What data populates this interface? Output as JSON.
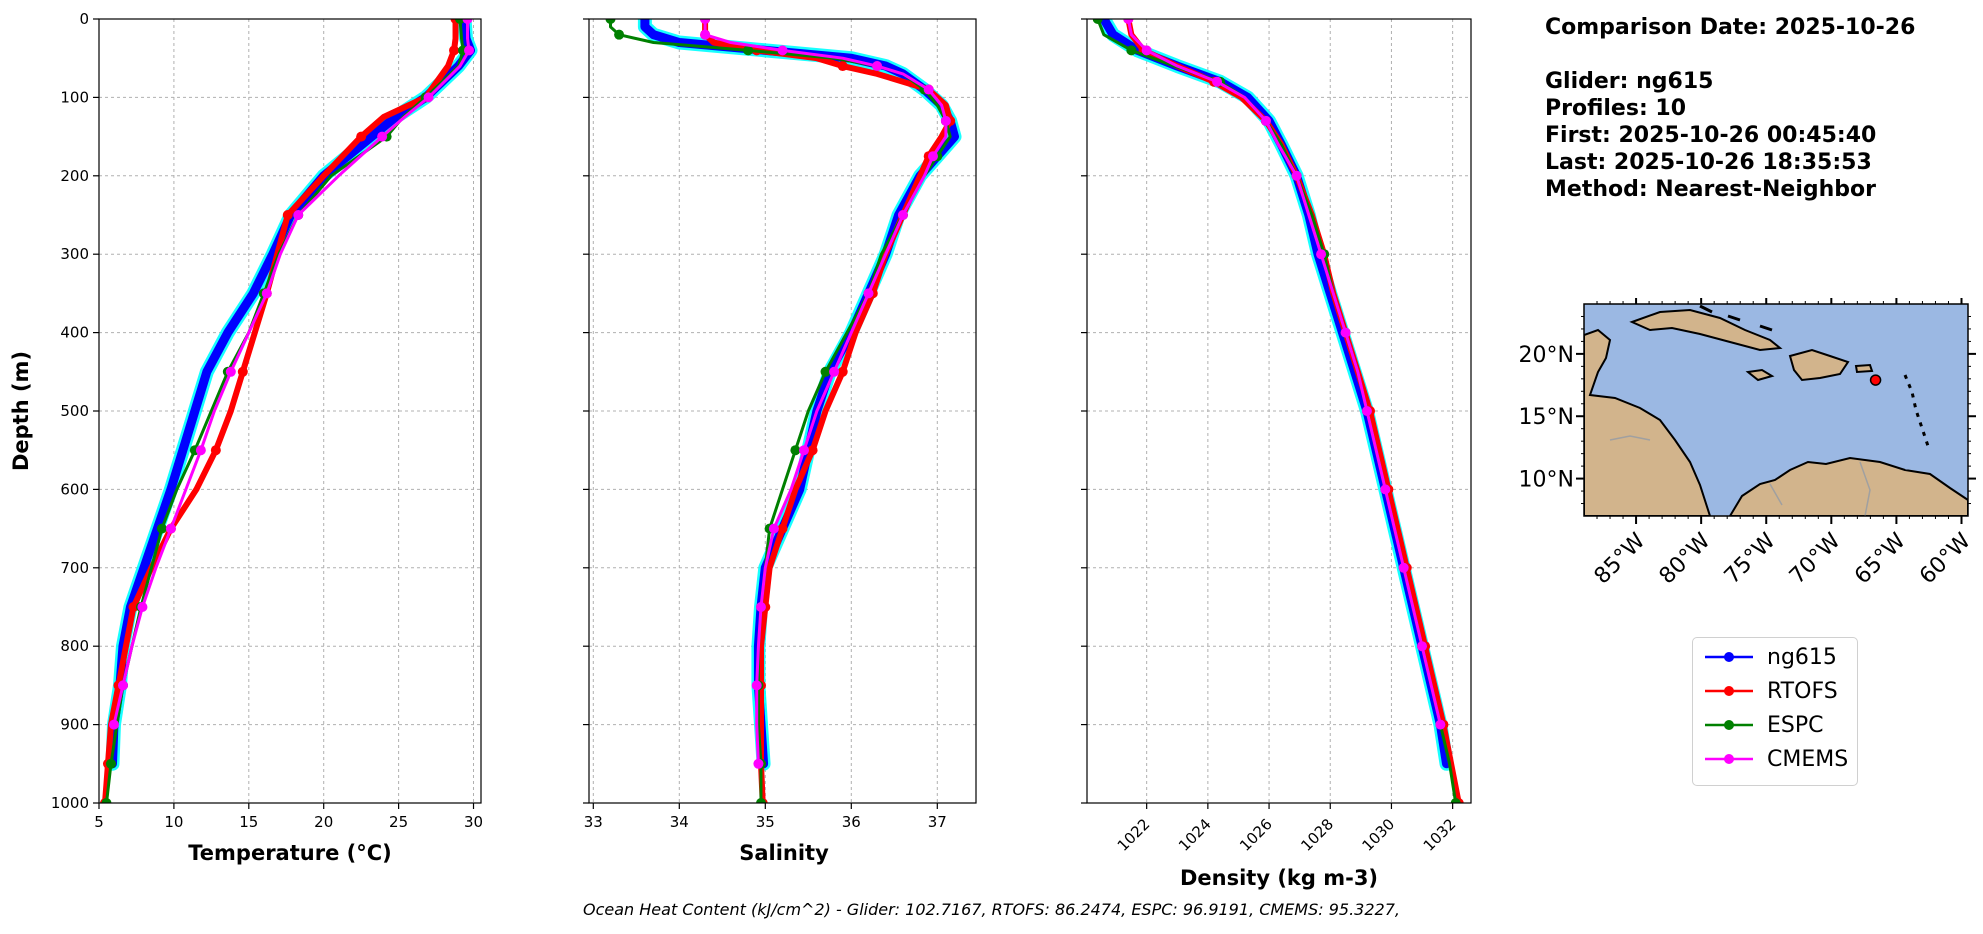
{
  "info": {
    "comparison_date": "Comparison Date: 2025-10-26",
    "glider": "Glider: ng615",
    "profiles": "Profiles: 10",
    "first": "First: 2025-10-26 00:45:40",
    "last": "Last: 2025-10-26 18:35:53",
    "method": "Method: Nearest-Neighbor"
  },
  "footer": "Ocean Heat Content (kJ/cm^2) - Glider: 102.7167,  RTOFS: 86.2474,  ESPC: 96.9191,  CMEMS: 95.3227,",
  "colors": {
    "ng615": "#0000ff",
    "RTOFS": "#ff0000",
    "ESPC": "#008000",
    "CMEMS": "#ff00ff",
    "glider_spread": "#00ffff",
    "ocean": "#9bb8e3",
    "land": "#d2b48c"
  },
  "legend": [
    {
      "name": "ng615",
      "color": "#0000ff"
    },
    {
      "name": "RTOFS",
      "color": "#ff0000"
    },
    {
      "name": "ESPC",
      "color": "#008000"
    },
    {
      "name": "CMEMS",
      "color": "#ff00ff"
    }
  ],
  "map": {
    "lat_labels": [
      "20°N",
      "15°N",
      "10°N"
    ],
    "lon_labels": [
      "85°W",
      "80°W",
      "75°W",
      "70°W",
      "65°W",
      "60°W"
    ],
    "glider_location": {
      "lon": -66.6,
      "lat": 17.9
    }
  },
  "chart_data": [
    {
      "type": "line",
      "xlabel": "Temperature (°C)",
      "ylabel": "Depth (m)",
      "xlim": [
        5,
        30.5
      ],
      "ylim": [
        1000,
        0
      ],
      "xticks": [
        "5",
        "10",
        "15",
        "20",
        "25",
        "30"
      ],
      "yticks": [
        "0",
        "100",
        "200",
        "300",
        "400",
        "500",
        "600",
        "700",
        "800",
        "900",
        "1000"
      ],
      "grid": true,
      "depth": [
        0,
        25,
        40,
        60,
        100,
        125,
        150,
        200,
        250,
        300,
        350,
        400,
        450,
        500,
        550,
        600,
        650,
        700,
        750,
        800,
        850,
        900,
        950,
        1000
      ],
      "series": [
        {
          "name": "ng615",
          "values": [
            29.4,
            29.5,
            29.8,
            29.0,
            26.8,
            24.8,
            23.2,
            20.0,
            17.8,
            16.6,
            15.3,
            13.6,
            12.2,
            11.4,
            10.6,
            9.8,
            8.9,
            8.0,
            7.1,
            6.6,
            6.4,
            6.0,
            5.9,
            null
          ]
        },
        {
          "name": "RTOFS",
          "values": [
            28.8,
            28.8,
            28.7,
            28.3,
            26.8,
            24.0,
            22.5,
            20.0,
            17.6,
            16.9,
            16.2,
            15.4,
            14.6,
            13.8,
            12.8,
            11.5,
            9.8,
            8.5,
            7.3,
            6.8,
            6.3,
            5.8,
            5.6,
            5.4
          ]
        },
        {
          "name": "ESPC",
          "values": [
            29.1,
            29.2,
            29.3,
            29.0,
            26.8,
            25.3,
            24.2,
            20.5,
            18.3,
            17.0,
            16.0,
            15.0,
            13.6,
            12.5,
            11.4,
            10.2,
            9.2,
            8.5,
            7.8,
            7.2,
            6.6,
            6.2,
            5.8,
            5.5
          ]
        },
        {
          "name": "CMEMS",
          "values": [
            29.6,
            29.6,
            29.7,
            29.1,
            27.0,
            25.4,
            23.9,
            21.0,
            18.3,
            17.1,
            16.2,
            15.0,
            13.8,
            12.7,
            11.8,
            10.8,
            9.8,
            8.8,
            7.9,
            7.2,
            6.6,
            6.0,
            null,
            null
          ]
        }
      ]
    },
    {
      "type": "line",
      "xlabel": "Salinity",
      "xlim": [
        32.95,
        37.45
      ],
      "ylim": [
        1000,
        0
      ],
      "xticks": [
        "33",
        "34",
        "35",
        "36",
        "37"
      ],
      "grid": true,
      "depth": [
        0,
        10,
        20,
        30,
        40,
        50,
        60,
        70,
        90,
        110,
        130,
        150,
        175,
        200,
        250,
        300,
        350,
        400,
        450,
        500,
        550,
        600,
        650,
        700,
        750,
        800,
        850,
        900,
        950,
        1000
      ],
      "series": [
        {
          "name": "ng615",
          "values": [
            33.6,
            33.6,
            33.7,
            34.0,
            35.0,
            36.0,
            36.4,
            36.6,
            36.85,
            37.05,
            37.15,
            37.2,
            37.0,
            36.8,
            36.55,
            36.4,
            36.2,
            36.0,
            35.75,
            35.6,
            35.5,
            35.4,
            35.2,
            35.0,
            34.95,
            34.92,
            34.92,
            34.95,
            34.98,
            null
          ]
        },
        {
          "name": "RTOFS",
          "values": [
            34.3,
            34.3,
            34.3,
            34.4,
            34.9,
            35.6,
            35.9,
            36.3,
            36.9,
            37.1,
            37.15,
            37.05,
            36.9,
            36.8,
            36.6,
            36.4,
            36.25,
            36.05,
            35.9,
            35.7,
            35.55,
            35.35,
            35.2,
            35.05,
            35.0,
            34.95,
            34.95,
            34.95,
            34.95,
            34.97
          ]
        },
        {
          "name": "ESPC",
          "values": [
            33.2,
            33.2,
            33.3,
            33.7,
            34.8,
            35.8,
            36.3,
            36.6,
            36.85,
            37.0,
            37.1,
            37.15,
            37.0,
            36.85,
            36.6,
            36.35,
            36.2,
            35.95,
            35.7,
            35.5,
            35.35,
            35.2,
            35.05,
            35.0,
            34.95,
            34.92,
            34.92,
            34.92,
            34.95,
            34.95
          ]
        },
        {
          "name": "CMEMS",
          "values": [
            34.3,
            34.3,
            34.3,
            34.6,
            35.2,
            35.9,
            36.3,
            36.6,
            36.9,
            37.05,
            37.1,
            37.1,
            36.95,
            36.85,
            36.6,
            36.4,
            36.2,
            36.0,
            35.8,
            35.6,
            35.45,
            35.3,
            35.1,
            35.0,
            34.95,
            34.92,
            34.9,
            34.9,
            34.92,
            null
          ]
        }
      ]
    },
    {
      "type": "line",
      "xlabel": "Density (kg m-3)",
      "xlim": [
        1020.05,
        1032.6
      ],
      "ylim": [
        1000,
        0
      ],
      "xticks": [
        "1022",
        "1024",
        "1026",
        "1028",
        "1030",
        "1032"
      ],
      "grid": true,
      "depth": [
        0,
        20,
        40,
        60,
        80,
        100,
        130,
        160,
        200,
        250,
        300,
        350,
        400,
        450,
        500,
        550,
        600,
        650,
        700,
        750,
        800,
        850,
        900,
        950,
        1000
      ],
      "series": [
        {
          "name": "ng615",
          "values": [
            1020.6,
            1020.9,
            1021.7,
            1023.0,
            1024.4,
            1025.3,
            1026.0,
            1026.4,
            1026.9,
            1027.3,
            1027.6,
            1028.0,
            1028.4,
            1028.8,
            1029.2,
            1029.5,
            1029.8,
            1030.1,
            1030.4,
            1030.7,
            1031.0,
            1031.3,
            1031.6,
            1031.8,
            null
          ]
        },
        {
          "name": "RTOFS",
          "values": [
            1021.4,
            1021.5,
            1021.9,
            1023.0,
            1024.2,
            1025.1,
            1025.9,
            1026.4,
            1026.9,
            1027.4,
            1027.8,
            1028.1,
            1028.5,
            1028.9,
            1029.3,
            1029.6,
            1029.9,
            1030.2,
            1030.5,
            1030.8,
            1031.1,
            1031.4,
            1031.7,
            1031.95,
            1032.2
          ]
        },
        {
          "name": "ESPC",
          "values": [
            1020.4,
            1020.6,
            1021.5,
            1022.9,
            1024.4,
            1025.2,
            1025.9,
            1026.4,
            1026.9,
            1027.4,
            1027.8,
            1028.1,
            1028.5,
            1028.9,
            1029.2,
            1029.5,
            1029.8,
            1030.1,
            1030.4,
            1030.7,
            1031.0,
            1031.3,
            1031.6,
            1031.9,
            1032.1
          ]
        },
        {
          "name": "CMEMS",
          "values": [
            1021.4,
            1021.5,
            1022.0,
            1023.0,
            1024.3,
            1025.2,
            1025.9,
            1026.3,
            1026.9,
            1027.3,
            1027.7,
            1028.1,
            1028.5,
            1028.9,
            1029.2,
            1029.5,
            1029.8,
            1030.1,
            1030.4,
            1030.7,
            1031.0,
            1031.3,
            1031.6,
            null,
            null
          ]
        }
      ]
    }
  ]
}
